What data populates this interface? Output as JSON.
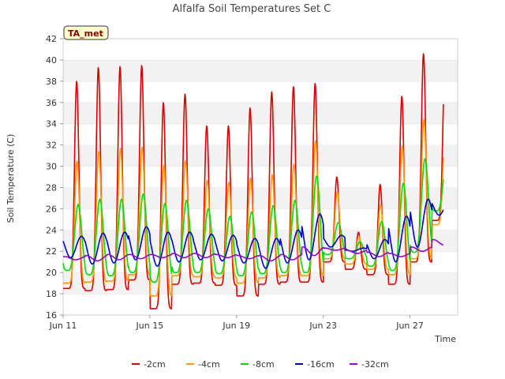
{
  "chart_data": {
    "type": "line",
    "title": "Alfalfa Soil Temperatures Set C",
    "xlabel": "Time",
    "ylabel": "Soil Temperature (C)",
    "badge": "TA_met",
    "xlim": [
      11,
      29.2
    ],
    "ylim": [
      16,
      42
    ],
    "yticks": [
      16,
      18,
      20,
      22,
      24,
      26,
      28,
      30,
      32,
      34,
      36,
      38,
      40,
      42
    ],
    "xticks": [
      {
        "value": 11,
        "label": "Jun 11"
      },
      {
        "value": 15,
        "label": "Jun 15"
      },
      {
        "value": 19,
        "label": "Jun 19"
      },
      {
        "value": 23,
        "label": "Jun 23"
      },
      {
        "value": 27,
        "label": "Jun 27"
      }
    ],
    "grid": "horizontal bands",
    "legend_position": "bottom",
    "days": [
      11,
      12,
      13,
      14,
      15,
      16,
      17,
      18,
      19,
      20,
      21,
      22,
      23,
      24,
      25,
      26,
      27,
      28
    ],
    "series": [
      {
        "name": "-2cm",
        "color": "#dd0000",
        "lag": 0.0,
        "sharp": 5,
        "max": [
          38.0,
          39.3,
          39.4,
          39.5,
          36.0,
          36.8,
          33.8,
          33.8,
          35.5,
          37.0,
          37.5,
          37.8,
          29.0,
          23.8,
          28.3,
          36.6,
          40.6,
          40.6
        ],
        "min": [
          18.5,
          18.3,
          18.4,
          19.3,
          16.6,
          18.9,
          19.0,
          18.8,
          17.8,
          18.9,
          19.1,
          19.1,
          21.0,
          20.3,
          19.8,
          18.9,
          21.0,
          24.9
        ]
      },
      {
        "name": "-4cm",
        "color": "#ff9900",
        "lag": 0.02,
        "sharp": 4,
        "max": [
          30.5,
          31.4,
          31.7,
          31.8,
          30.1,
          30.5,
          28.7,
          28.5,
          28.9,
          29.2,
          30.2,
          32.4,
          27.6,
          23.4,
          26.4,
          31.9,
          34.4,
          34.4
        ],
        "min": [
          19.0,
          19.1,
          19.2,
          19.8,
          17.8,
          19.7,
          19.6,
          19.5,
          19.0,
          19.5,
          19.7,
          19.7,
          21.3,
          20.8,
          20.3,
          19.8,
          21.3,
          24.5
        ]
      },
      {
        "name": "-8cm",
        "color": "#00dd00",
        "lag": 0.07,
        "sharp": 2,
        "max": [
          26.4,
          26.9,
          26.9,
          27.4,
          26.5,
          26.8,
          26.0,
          25.3,
          25.7,
          26.3,
          26.8,
          29.1,
          24.7,
          22.9,
          24.8,
          28.4,
          30.7,
          30.7
        ],
        "min": [
          20.2,
          19.8,
          19.7,
          20.0,
          19.1,
          20.0,
          20.0,
          19.9,
          19.7,
          19.9,
          20.0,
          20.0,
          21.7,
          21.3,
          20.6,
          20.2,
          21.9,
          25.8
        ]
      },
      {
        "name": "-16cm",
        "color": "#0000cc",
        "lag": 0.22,
        "sharp": 1,
        "max": [
          23.4,
          23.7,
          23.8,
          24.3,
          23.8,
          23.8,
          23.6,
          23.5,
          23.2,
          23.2,
          24.0,
          25.5,
          23.5,
          22.3,
          23.1,
          25.3,
          26.9,
          26.9
        ],
        "min": [
          21.4,
          20.8,
          20.9,
          21.2,
          20.6,
          21.0,
          21.2,
          21.1,
          20.9,
          20.4,
          20.9,
          21.2,
          22.4,
          22.0,
          21.3,
          21.0,
          22.4,
          25.4
        ]
      },
      {
        "name": "-32cm",
        "color": "#9900cc",
        "lag": 0.45,
        "sharp": 1,
        "max": [
          21.5,
          21.6,
          21.7,
          21.7,
          21.7,
          21.8,
          21.8,
          21.7,
          21.6,
          21.6,
          21.7,
          22.4,
          22.3,
          22.1,
          21.9,
          21.8,
          22.4,
          23.1
        ],
        "min": [
          21.2,
          21.1,
          21.2,
          21.3,
          21.4,
          21.4,
          21.4,
          21.4,
          21.3,
          21.1,
          21.2,
          21.6,
          22.1,
          21.8,
          21.5,
          21.5,
          22.0,
          22.6
        ]
      }
    ]
  }
}
